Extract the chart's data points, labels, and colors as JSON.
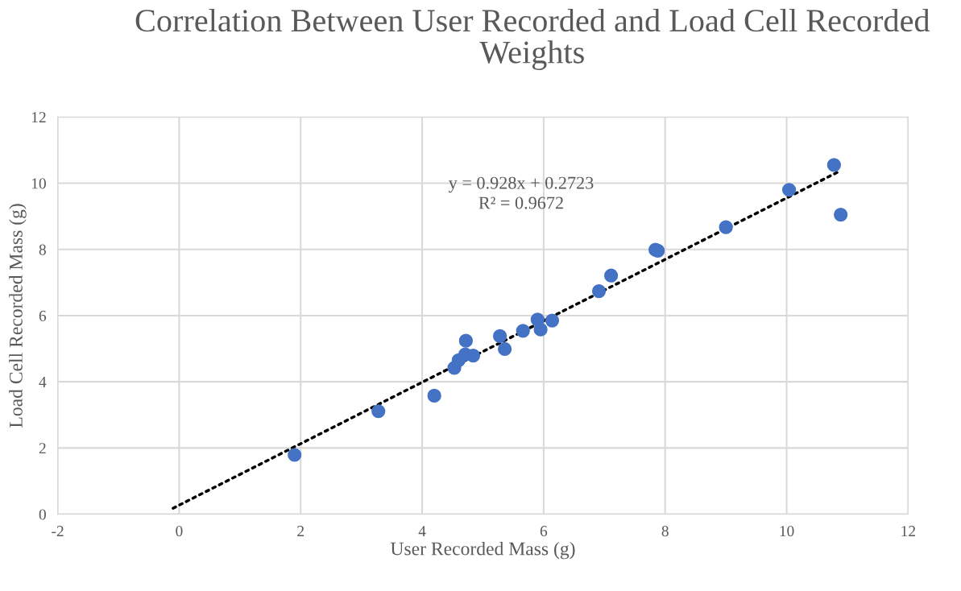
{
  "chart_data": {
    "type": "scatter",
    "title": "Correlation Between User Recorded and Load Cell Recorded Weights",
    "xlabel": "User Recorded Mass (g)",
    "ylabel": "Load Cell Recorded Mass (g)",
    "series": [
      {
        "color": "#4472c4",
        "marker": "circle",
        "x": [
          1.9,
          3.28,
          4.2,
          4.53,
          4.6,
          4.72,
          4.71,
          4.84,
          5.28,
          5.36,
          5.66,
          5.9,
          5.95,
          6.14,
          6.91,
          7.11,
          7.84,
          7.88,
          9.0,
          10.04,
          10.78,
          10.89
        ],
        "values": [
          1.79,
          3.11,
          3.58,
          4.42,
          4.65,
          5.24,
          4.83,
          4.79,
          5.38,
          4.99,
          5.54,
          5.88,
          5.58,
          5.85,
          6.74,
          7.21,
          7.99,
          7.96,
          8.67,
          9.8,
          10.55,
          9.05
        ]
      },
      {
        "type": "line",
        "color": "#000000",
        "line_style": "dotted",
        "x": [
          -0.1,
          10.89
        ],
        "values": [
          0.18,
          10.38
        ]
      }
    ],
    "annotations": [
      "y = 0.928x + 0.2723\nR² = 0.9672"
    ],
    "xlim": [
      -2,
      12
    ],
    "xticks": [
      -2,
      0,
      2,
      4,
      6,
      8,
      10,
      12
    ],
    "ylim": [
      0,
      12
    ],
    "yticks": [
      0,
      2,
      4,
      6,
      8,
      10,
      12
    ],
    "grid": true,
    "legend": false
  }
}
